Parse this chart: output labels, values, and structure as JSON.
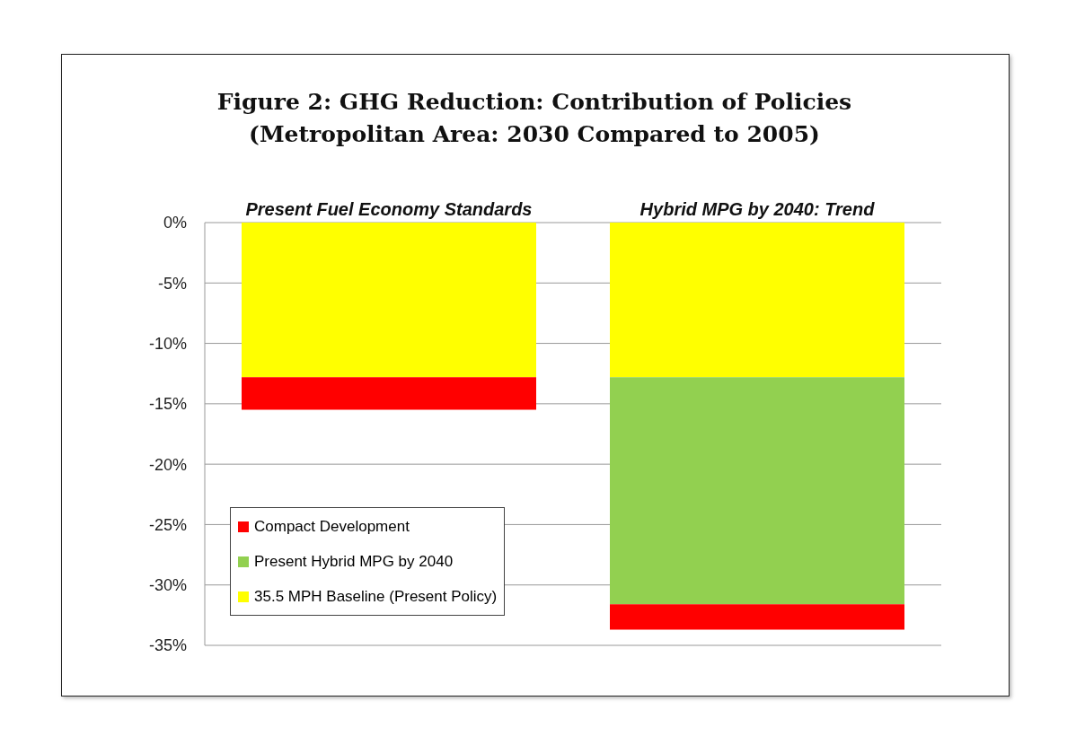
{
  "chart_data": {
    "type": "bar",
    "title": "Figure 2: GHG Reduction: Contribution of Policies\n(Metropolitan Area: 2030 Compared to 2005)",
    "categories": [
      "Present Fuel Economy Standards",
      "Hybrid MPG by 2040: Trend"
    ],
    "stacked": true,
    "series": [
      {
        "name": "35.5 MPH Baseline (Present Policy)",
        "color": "#ffff00",
        "values": [
          -12.8,
          -12.8
        ]
      },
      {
        "name": "Present Hybrid MPG by 2040",
        "color": "#92d050",
        "values": [
          null,
          -18.8
        ]
      },
      {
        "name": "Compact Development",
        "color": "#ff0000",
        "values": [
          -2.7,
          -2.1
        ]
      }
    ],
    "ylim": [
      -35,
      0
    ],
    "yticks": [
      {
        "value": 0,
        "label": "0%"
      },
      {
        "value": -5,
        "label": "-5%"
      },
      {
        "value": -10,
        "label": "-10%"
      },
      {
        "value": -15,
        "label": "-15%"
      },
      {
        "value": -20,
        "label": "-20%"
      },
      {
        "value": -25,
        "label": "-25%"
      },
      {
        "value": -30,
        "label": "-30%"
      },
      {
        "value": -35,
        "label": "-35%"
      }
    ],
    "grid": "y",
    "legend": "bottom left"
  }
}
